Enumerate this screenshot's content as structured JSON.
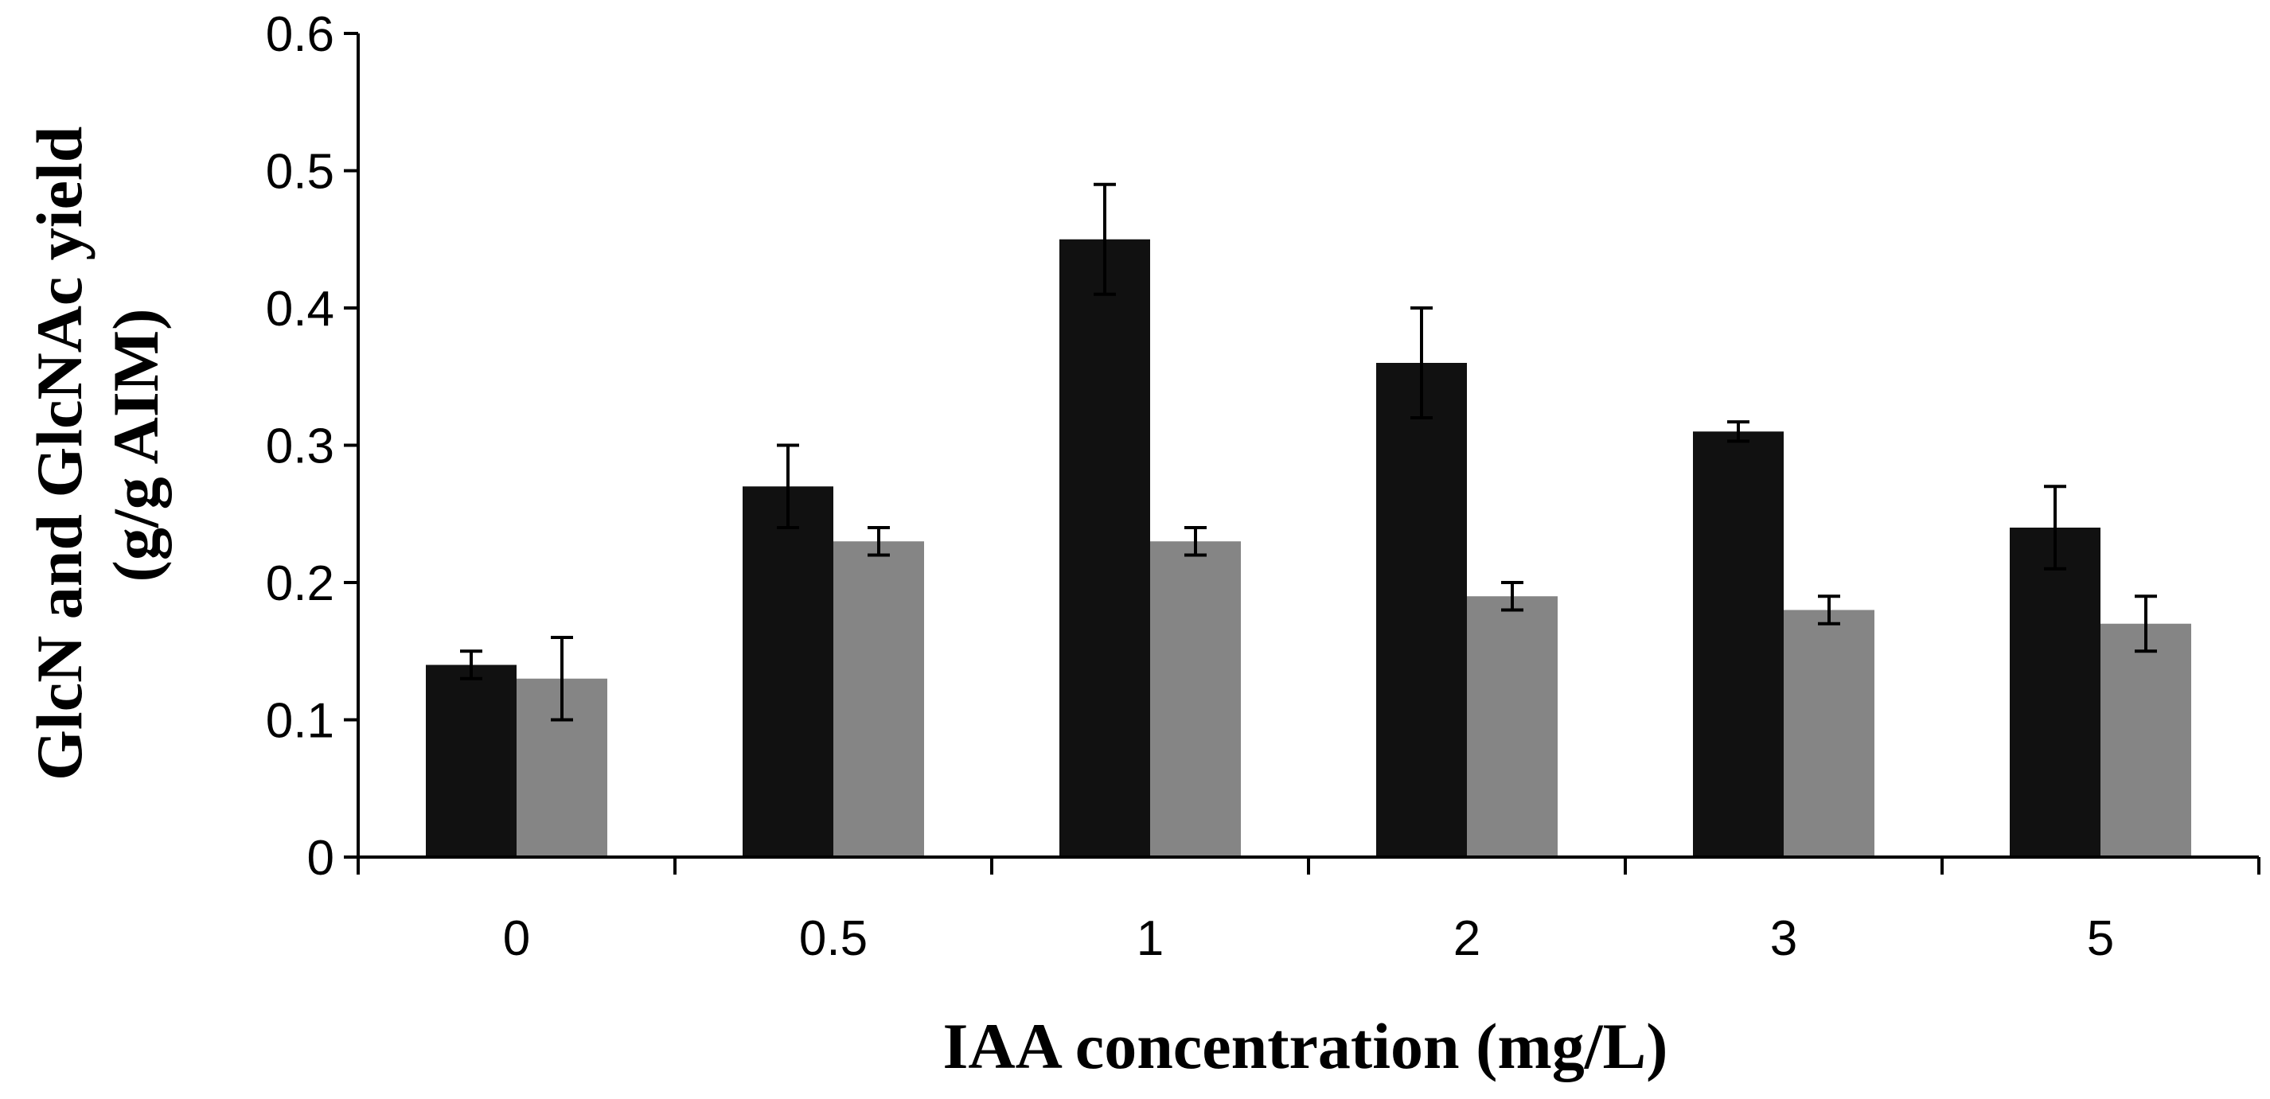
{
  "chart_data": {
    "type": "bar",
    "title": "",
    "xlabel": "IAA concentration (mg/L)",
    "ylabel_lines": [
      "GlcN and GlcNAc yield",
      "(g/g AIM)"
    ],
    "ylim": [
      0,
      0.6
    ],
    "ytick_step": 0.1,
    "yticks": [
      "0",
      "0.1",
      "0.2",
      "0.3",
      "0.4",
      "0.5",
      "0.6"
    ],
    "categories": [
      "0",
      "0.5",
      "1",
      "2",
      "3",
      "5"
    ],
    "series": [
      {
        "name": "GlcN",
        "color": "#111111",
        "values": [
          0.14,
          0.27,
          0.45,
          0.36,
          0.31,
          0.24
        ],
        "errors": [
          0.01,
          0.03,
          0.04,
          0.04,
          0.007,
          0.03
        ]
      },
      {
        "name": "GlcNAc",
        "color": "#858585",
        "values": [
          0.13,
          0.23,
          0.23,
          0.19,
          0.18,
          0.17
        ],
        "errors": [
          0.03,
          0.01,
          0.01,
          0.01,
          0.01,
          0.02
        ]
      }
    ],
    "grid": false,
    "legend": "none"
  }
}
